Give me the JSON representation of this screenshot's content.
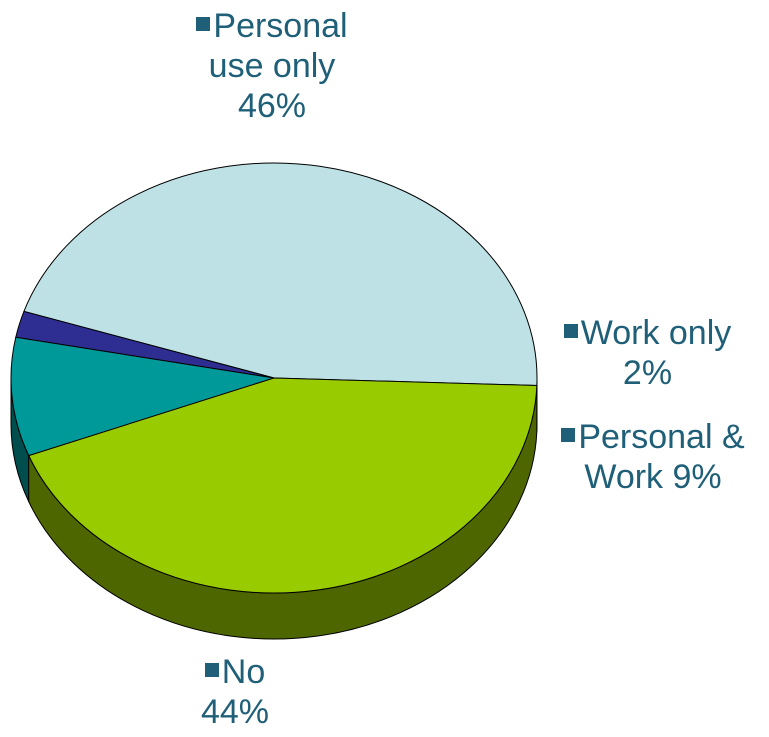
{
  "chart_data": {
    "type": "pie",
    "style": "3d",
    "title": "",
    "slices": [
      {
        "label": "Personal use only",
        "value": 46,
        "percent_label": "46%",
        "color": "#bde1e4"
      },
      {
        "label": "Work only",
        "value": 2,
        "percent_label": "2%",
        "color": "#2e2e92"
      },
      {
        "label": "Personal & Work",
        "value": 9,
        "percent_label": "9%",
        "color": "#00999a"
      },
      {
        "label": "No",
        "value": 44,
        "percent_label": "44%",
        "color": "#99cc00"
      }
    ],
    "label_lines": {
      "personal_use_only": [
        "Personal",
        "use only",
        "46%"
      ],
      "work_only": [
        "Work only",
        "2%"
      ],
      "personal_and_work": [
        "Personal &",
        "Work 9%"
      ],
      "no": [
        "No",
        "44%"
      ]
    },
    "label_color": "#1f5f78",
    "legend": "none"
  }
}
